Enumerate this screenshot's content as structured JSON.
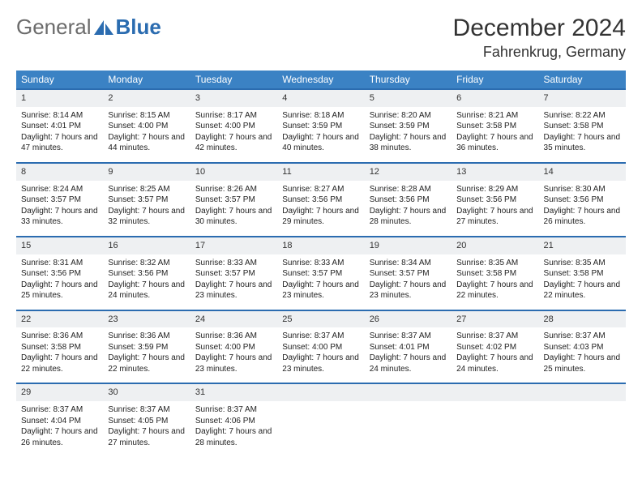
{
  "brand": {
    "name_a": "General",
    "name_b": "Blue"
  },
  "title": "December 2024",
  "location": "Fahrenkrug, Germany",
  "colors": {
    "header_bg": "#3b82c4",
    "border": "#2b6cb0",
    "daynum_bg": "#eef0f2",
    "text": "#222222",
    "logo_gray": "#6b6b6b"
  },
  "weekdays": [
    "Sunday",
    "Monday",
    "Tuesday",
    "Wednesday",
    "Thursday",
    "Friday",
    "Saturday"
  ],
  "weeks": [
    [
      {
        "n": "1",
        "sr": "8:14 AM",
        "ss": "4:01 PM",
        "dl": "7 hours and 47 minutes."
      },
      {
        "n": "2",
        "sr": "8:15 AM",
        "ss": "4:00 PM",
        "dl": "7 hours and 44 minutes."
      },
      {
        "n": "3",
        "sr": "8:17 AM",
        "ss": "4:00 PM",
        "dl": "7 hours and 42 minutes."
      },
      {
        "n": "4",
        "sr": "8:18 AM",
        "ss": "3:59 PM",
        "dl": "7 hours and 40 minutes."
      },
      {
        "n": "5",
        "sr": "8:20 AM",
        "ss": "3:59 PM",
        "dl": "7 hours and 38 minutes."
      },
      {
        "n": "6",
        "sr": "8:21 AM",
        "ss": "3:58 PM",
        "dl": "7 hours and 36 minutes."
      },
      {
        "n": "7",
        "sr": "8:22 AM",
        "ss": "3:58 PM",
        "dl": "7 hours and 35 minutes."
      }
    ],
    [
      {
        "n": "8",
        "sr": "8:24 AM",
        "ss": "3:57 PM",
        "dl": "7 hours and 33 minutes."
      },
      {
        "n": "9",
        "sr": "8:25 AM",
        "ss": "3:57 PM",
        "dl": "7 hours and 32 minutes."
      },
      {
        "n": "10",
        "sr": "8:26 AM",
        "ss": "3:57 PM",
        "dl": "7 hours and 30 minutes."
      },
      {
        "n": "11",
        "sr": "8:27 AM",
        "ss": "3:56 PM",
        "dl": "7 hours and 29 minutes."
      },
      {
        "n": "12",
        "sr": "8:28 AM",
        "ss": "3:56 PM",
        "dl": "7 hours and 28 minutes."
      },
      {
        "n": "13",
        "sr": "8:29 AM",
        "ss": "3:56 PM",
        "dl": "7 hours and 27 minutes."
      },
      {
        "n": "14",
        "sr": "8:30 AM",
        "ss": "3:56 PM",
        "dl": "7 hours and 26 minutes."
      }
    ],
    [
      {
        "n": "15",
        "sr": "8:31 AM",
        "ss": "3:56 PM",
        "dl": "7 hours and 25 minutes."
      },
      {
        "n": "16",
        "sr": "8:32 AM",
        "ss": "3:56 PM",
        "dl": "7 hours and 24 minutes."
      },
      {
        "n": "17",
        "sr": "8:33 AM",
        "ss": "3:57 PM",
        "dl": "7 hours and 23 minutes."
      },
      {
        "n": "18",
        "sr": "8:33 AM",
        "ss": "3:57 PM",
        "dl": "7 hours and 23 minutes."
      },
      {
        "n": "19",
        "sr": "8:34 AM",
        "ss": "3:57 PM",
        "dl": "7 hours and 23 minutes."
      },
      {
        "n": "20",
        "sr": "8:35 AM",
        "ss": "3:58 PM",
        "dl": "7 hours and 22 minutes."
      },
      {
        "n": "21",
        "sr": "8:35 AM",
        "ss": "3:58 PM",
        "dl": "7 hours and 22 minutes."
      }
    ],
    [
      {
        "n": "22",
        "sr": "8:36 AM",
        "ss": "3:58 PM",
        "dl": "7 hours and 22 minutes."
      },
      {
        "n": "23",
        "sr": "8:36 AM",
        "ss": "3:59 PM",
        "dl": "7 hours and 22 minutes."
      },
      {
        "n": "24",
        "sr": "8:36 AM",
        "ss": "4:00 PM",
        "dl": "7 hours and 23 minutes."
      },
      {
        "n": "25",
        "sr": "8:37 AM",
        "ss": "4:00 PM",
        "dl": "7 hours and 23 minutes."
      },
      {
        "n": "26",
        "sr": "8:37 AM",
        "ss": "4:01 PM",
        "dl": "7 hours and 24 minutes."
      },
      {
        "n": "27",
        "sr": "8:37 AM",
        "ss": "4:02 PM",
        "dl": "7 hours and 24 minutes."
      },
      {
        "n": "28",
        "sr": "8:37 AM",
        "ss": "4:03 PM",
        "dl": "7 hours and 25 minutes."
      }
    ],
    [
      {
        "n": "29",
        "sr": "8:37 AM",
        "ss": "4:04 PM",
        "dl": "7 hours and 26 minutes."
      },
      {
        "n": "30",
        "sr": "8:37 AM",
        "ss": "4:05 PM",
        "dl": "7 hours and 27 minutes."
      },
      {
        "n": "31",
        "sr": "8:37 AM",
        "ss": "4:06 PM",
        "dl": "7 hours and 28 minutes."
      },
      null,
      null,
      null,
      null
    ]
  ],
  "labels": {
    "sunrise": "Sunrise: ",
    "sunset": "Sunset: ",
    "daylight": "Daylight: "
  }
}
